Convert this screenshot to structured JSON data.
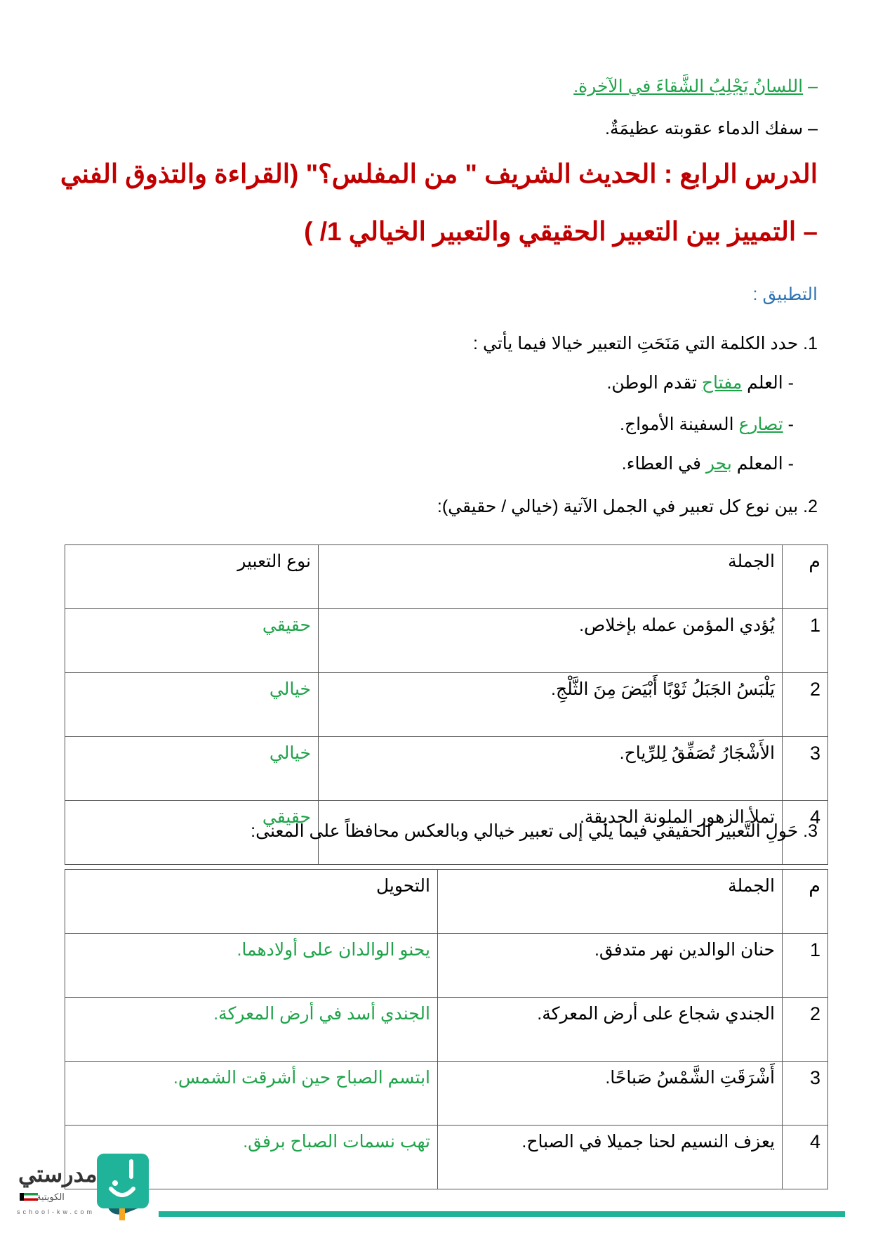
{
  "top_bullets": [
    "اللسانُ يَجْلِبُ الشَّقاءَ في الآخرة.",
    "سفك الدماء عقوبته عظيمَةٌ."
  ],
  "title_line1": "الدرس الرابع : الحديث الشريف \" من المفلس؟\" (القراءة والتذوق الفني",
  "title_line2": "– التمييز بين التعبير الحقيقي والتعبير الخيالي 1/ )",
  "section_label": "التطبيق :",
  "q1": {
    "text": "1. حدد الكلمة التي مَنَحَتِ التعبير خيالا فيما يأتي :",
    "items": [
      {
        "before": "- العلم ",
        "word": "مفتاح",
        "after": " تقدم الوطن."
      },
      {
        "before": "- ",
        "word": "تصارع",
        "after": " السفينة الأمواج."
      },
      {
        "before": "- المعلم ",
        "word": "بحر",
        "after": " في العطاء."
      }
    ]
  },
  "q2": {
    "text": "2. بين نوع كل تعبير في الجمل الآتية (خيالي / حقيقي):",
    "headers": [
      "م",
      "الجملة",
      "نوع التعبير"
    ],
    "rows": [
      {
        "n": "1",
        "sentence": "يُؤدي المؤمن عمله بإخلاص.",
        "answer": "حقيقي"
      },
      {
        "n": "2",
        "sentence": "يَلْبَسُ الجَبَلُ ثَوْبًا أَبْيَضَ مِنَ الثَّلْجِ.",
        "answer": "خيالي"
      },
      {
        "n": "3",
        "sentence": "الأَشْجَارُ تُصَفِّقُ لِلرِّياح.",
        "answer": "خيالي"
      },
      {
        "n": "4",
        "sentence": "تملأ الزهور الملونة الحديقة.",
        "answer": "حقيقي"
      }
    ]
  },
  "q3": {
    "text": "3. حَولِ التَّعبير الحقيقي فيما يلي إلى تعبير خيالي وبالعكس محافظاً على المعنى:",
    "headers": [
      "م",
      "الجملة",
      "التحويل"
    ],
    "rows": [
      {
        "n": "1",
        "sentence": "حنان الوالدين نهر متدفق.",
        "answer": "يحنو الوالدان على أولادهما."
      },
      {
        "n": "2",
        "sentence": "الجندي شجاع على أرض المعركة.",
        "answer": "الجندي أسد في أرض المعركة."
      },
      {
        "n": "3",
        "sentence": "أَشْرَقَتِ الشَّمْسُ صَباحًا.",
        "answer": "ابتسم الصباح حين أشرقت الشمس."
      },
      {
        "n": "4",
        "sentence": "يعزف النسيم لحنا جميلا في الصباح.",
        "answer": "تهب نسمات الصباح برفق."
      }
    ]
  },
  "footer": {
    "logo_name": "مدرستي",
    "logo_sub": "الكويتية",
    "logo_url": "school-kw.com"
  },
  "colors": {
    "title": "#c00000",
    "answer": "#1fa34a",
    "section": "#2e74b5",
    "brand": "#1fb39a"
  }
}
